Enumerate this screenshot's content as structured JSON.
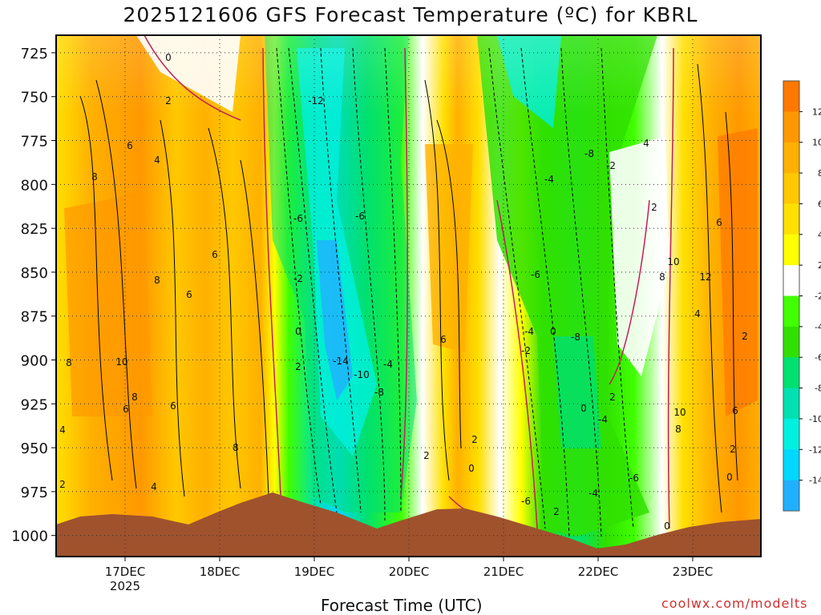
{
  "chart_data": {
    "type": "heatmap",
    "title": "2025121606 GFS Forecast Temperature (ºC) for KBRL",
    "xlabel": "Forecast Time (UTC)",
    "ylabel": "",
    "credit": "coolwx.com/modelts",
    "y_axis": {
      "scale": "pressure",
      "range": [
        1012,
        715
      ],
      "ticks": [
        725,
        750,
        775,
        800,
        825,
        850,
        875,
        900,
        925,
        950,
        975,
        1000
      ]
    },
    "x_axis": {
      "range": [
        "2025-12-16 06Z",
        "2025-12-23 18Z"
      ],
      "ticks": [
        {
          "label": "17DEC",
          "sub": "2025"
        },
        {
          "label": "18DEC",
          "sub": ""
        },
        {
          "label": "19DEC",
          "sub": ""
        },
        {
          "label": "20DEC",
          "sub": ""
        },
        {
          "label": "21DEC",
          "sub": ""
        },
        {
          "label": "22DEC",
          "sub": ""
        },
        {
          "label": "23DEC",
          "sub": ""
        }
      ]
    },
    "grid": true,
    "colorbar": {
      "placement": "right",
      "labels": [
        "12",
        "10",
        "8",
        "6",
        "4",
        "2",
        "-2",
        "-4",
        "-6",
        "-8",
        "-10",
        "-12",
        "-14"
      ],
      "colors": [
        "#ff7800",
        "#ff9800",
        "#ffb000",
        "#ffc800",
        "#ffe000",
        "#ffff00",
        "#ffffff",
        "#40ff00",
        "#30e000",
        "#00e070",
        "#00e0b0",
        "#00f0e0",
        "#00d8ff",
        "#20b0ff"
      ]
    },
    "series": [
      {
        "days": "16DEC-17DEC",
        "temperature_c_low_levels": [
          4,
          8,
          10
        ]
      },
      {
        "days": "18DEC",
        "temperature_c_low_levels": [
          6,
          8
        ]
      },
      {
        "days": "19DEC",
        "temperature_c_low_levels": [
          -12,
          -14,
          -10,
          -8,
          -6,
          -4,
          -2
        ]
      },
      {
        "days": "20DEC",
        "temperature_c_low_levels": [
          6,
          2,
          0
        ]
      },
      {
        "days": "21DEC-22DEC",
        "temperature_c_low_levels": [
          -8,
          -6,
          -4,
          -2,
          0
        ]
      },
      {
        "days": "23DEC",
        "temperature_c_low_levels": [
          8,
          10,
          12
        ]
      }
    ],
    "contour_labels": [
      "0",
      "2",
      "6",
      "4",
      "8",
      "8",
      "6",
      "6",
      "8",
      "10",
      "8",
      "6",
      "4",
      "2",
      "4",
      "6",
      "8",
      "-12",
      "-6",
      "-6",
      "-2",
      "0",
      "2",
      "-14",
      "-10",
      "-8",
      "-4",
      "6",
      "2",
      "0",
      "2",
      "-6",
      "-8",
      "-4",
      "-2",
      "-6",
      "-4",
      "0",
      "-8",
      "-2",
      "0",
      "2",
      "-4",
      "-6",
      "-4",
      "2",
      "0",
      "4",
      "2",
      "10",
      "8",
      "6",
      "12",
      "4",
      "2",
      "10",
      "8",
      "6",
      "2",
      "0"
    ]
  }
}
